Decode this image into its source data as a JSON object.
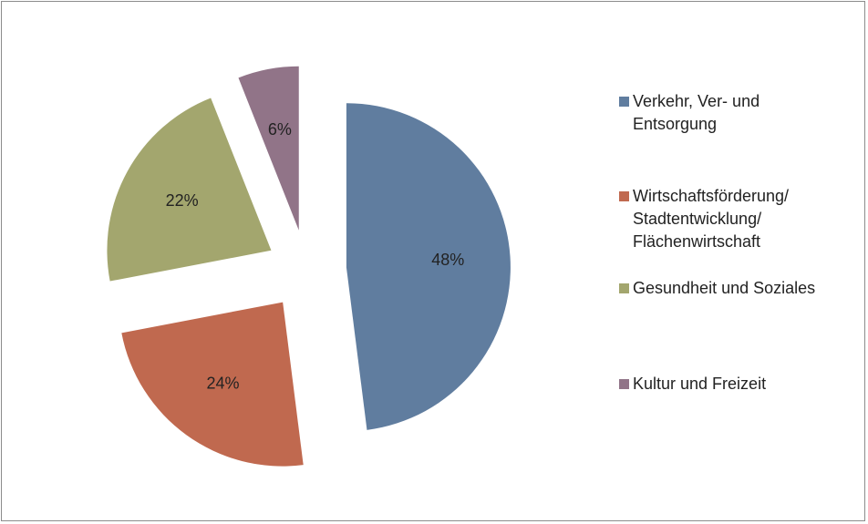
{
  "chart_data": {
    "type": "pie",
    "categories": [
      "Verkehr, Ver- und Entsorgung",
      "Wirtschaftsförderung/ Stadtentwicklung/ Flächenwirtschaft",
      "Gesundheit und Soziales",
      "Kultur und Freizeit"
    ],
    "values": [
      48,
      24,
      22,
      6
    ],
    "value_labels": [
      "48%",
      "24%",
      "22%",
      "6%"
    ],
    "colors": [
      "#607d9f",
      "#c0694f",
      "#a3a66e",
      "#917488"
    ],
    "exploded": true,
    "legend": "right"
  }
}
